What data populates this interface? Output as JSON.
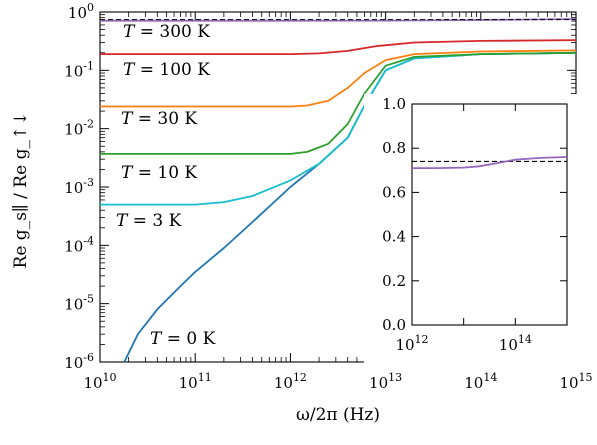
{
  "chart_data": [
    {
      "type": "line",
      "title": "",
      "xlabel": "ω/2π (Hz)",
      "ylabel": "Re g_s∥ / Re g_↑↓",
      "xscale": "log",
      "yscale": "log",
      "xlim": [
        10000000000.0,
        1000000000000000.0
      ],
      "ylim": [
        1e-06,
        1
      ],
      "x_ticks": [
        {
          "value": 10000000000.0,
          "base": "10",
          "exp": "10"
        },
        {
          "value": 100000000000.0,
          "base": "10",
          "exp": "11"
        },
        {
          "value": 1000000000000.0,
          "base": "10",
          "exp": "12"
        },
        {
          "value": 10000000000000.0,
          "base": "10",
          "exp": "13"
        },
        {
          "value": 100000000000000.0,
          "base": "10",
          "exp": "14"
        },
        {
          "value": 1000000000000000.0,
          "base": "10",
          "exp": "15"
        }
      ],
      "y_ticks": [
        {
          "value": 1,
          "base": "10",
          "exp": "0"
        },
        {
          "value": 0.1,
          "base": "10",
          "exp": "-1"
        },
        {
          "value": 0.01,
          "base": "10",
          "exp": "-2"
        },
        {
          "value": 0.001,
          "base": "10",
          "exp": "-3"
        },
        {
          "value": 0.0001,
          "base": "10",
          "exp": "-4"
        },
        {
          "value": 1e-05,
          "base": "10",
          "exp": "-5"
        },
        {
          "value": 1e-06,
          "base": "10",
          "exp": "-6"
        }
      ],
      "grid": false,
      "reference_line": {
        "y": 0.74,
        "style": "dashed",
        "color": "#000000"
      },
      "series": [
        {
          "name": "T = 300 K",
          "color": "#9467bd",
          "x": [
            10000000000.0,
            100000000000.0,
            1000000000000.0,
            10000000000000.0,
            100000000000000.0,
            1000000000000000.0
          ],
          "y": [
            0.71,
            0.71,
            0.71,
            0.712,
            0.73,
            0.76
          ]
        },
        {
          "name": "T = 100 K",
          "color": "#d62728",
          "x": [
            10000000000.0,
            100000000000.0,
            1000000000000.0,
            2000000000000.0,
            4000000000000.0,
            8000000000000.0,
            20000000000000.0,
            100000000000000.0,
            1000000000000000.0
          ],
          "y": [
            0.19,
            0.19,
            0.19,
            0.195,
            0.215,
            0.26,
            0.3,
            0.32,
            0.33
          ]
        },
        {
          "name": "T = 30 K",
          "color": "#ff7f0e",
          "x": [
            10000000000.0,
            100000000000.0,
            1000000000000.0,
            1500000000000.0,
            2500000000000.0,
            4000000000000.0,
            6000000000000.0,
            10000000000000.0,
            20000000000000.0,
            100000000000000.0,
            1000000000000000.0
          ],
          "y": [
            0.024,
            0.024,
            0.024,
            0.025,
            0.03,
            0.05,
            0.09,
            0.15,
            0.19,
            0.21,
            0.22
          ]
        },
        {
          "name": "T = 10 K",
          "color": "#2ca02c",
          "x": [
            10000000000.0,
            100000000000.0,
            1000000000000.0,
            1500000000000.0,
            2500000000000.0,
            4000000000000.0,
            6000000000000.0,
            10000000000000.0,
            20000000000000.0,
            100000000000000.0,
            1000000000000000.0
          ],
          "y": [
            0.0037,
            0.0037,
            0.0037,
            0.004,
            0.0055,
            0.012,
            0.04,
            0.12,
            0.17,
            0.19,
            0.2
          ]
        },
        {
          "name": "T = 3 K",
          "color": "#17becf",
          "x": [
            10000000000.0,
            100000000000.0,
            200000000000.0,
            400000000000.0,
            1000000000000.0,
            2000000000000.0,
            4000000000000.0,
            6000000000000.0,
            10000000000000.0,
            20000000000000.0,
            100000000000000.0,
            1000000000000000.0
          ],
          "y": [
            0.0005,
            0.0005,
            0.00055,
            0.0007,
            0.0013,
            0.0025,
            0.007,
            0.025,
            0.1,
            0.16,
            0.19,
            0.2
          ]
        },
        {
          "name": "T = 0 K",
          "color": "#1f77b4",
          "x": [
            18000000000.0,
            25000000000.0,
            40000000000.0,
            70000000000.0,
            100000000000.0,
            200000000000.0,
            500000000000.0,
            1000000000000.0,
            2000000000000.0,
            4000000000000.0,
            6000000000000.0,
            10000000000000.0,
            20000000000000.0,
            100000000000000.0,
            1000000000000000.0
          ],
          "y": [
            1e-06,
            3e-06,
            8e-06,
            2e-05,
            3.5e-05,
            9e-05,
            0.00035,
            0.001,
            0.0025,
            0.007,
            0.025,
            0.1,
            0.16,
            0.19,
            0.2
          ]
        }
      ],
      "annotations": [
        {
          "series": "T = 300 K",
          "parts": [
            "T",
            " = 300 K"
          ]
        },
        {
          "series": "T = 100 K",
          "parts": [
            "T",
            " = 100 K"
          ]
        },
        {
          "series": "T = 30 K",
          "parts": [
            "T",
            " = 30 K"
          ]
        },
        {
          "series": "T = 10 K",
          "parts": [
            "T",
            " = 10 K"
          ]
        },
        {
          "series": "T = 3 K",
          "parts": [
            "T",
            " = 3 K"
          ]
        },
        {
          "series": "T = 0 K",
          "parts": [
            "T",
            " = 0 K"
          ]
        }
      ]
    },
    {
      "type": "line",
      "title": "",
      "xscale": "log",
      "yscale": "linear",
      "xlim": [
        1000000000000.0,
        1000000000000000.0
      ],
      "ylim": [
        0,
        1
      ],
      "x_ticks": [
        {
          "value": 1000000000000.0,
          "base": "10",
          "exp": "12"
        },
        {
          "value": 100000000000000.0,
          "base": "10",
          "exp": "14"
        }
      ],
      "y_ticks": [
        {
          "value": 0,
          "label": "0.0"
        },
        {
          "value": 0.2,
          "label": "0.2"
        },
        {
          "value": 0.4,
          "label": "0.4"
        },
        {
          "value": 0.6,
          "label": "0.6"
        },
        {
          "value": 0.8,
          "label": "0.8"
        },
        {
          "value": 1.0,
          "label": "1.0"
        }
      ],
      "grid": false,
      "reference_line": {
        "y": 0.74,
        "style": "dashed",
        "color": "#000000"
      },
      "series": [
        {
          "name": "T = 300 K",
          "color": "#9467bd",
          "x": [
            1000000000000.0,
            3000000000000.0,
            10000000000000.0,
            20000000000000.0,
            50000000000000.0,
            100000000000000.0,
            300000000000000.0,
            1000000000000000.0
          ],
          "y": [
            0.71,
            0.71,
            0.712,
            0.718,
            0.735,
            0.748,
            0.756,
            0.76
          ]
        }
      ]
    }
  ]
}
